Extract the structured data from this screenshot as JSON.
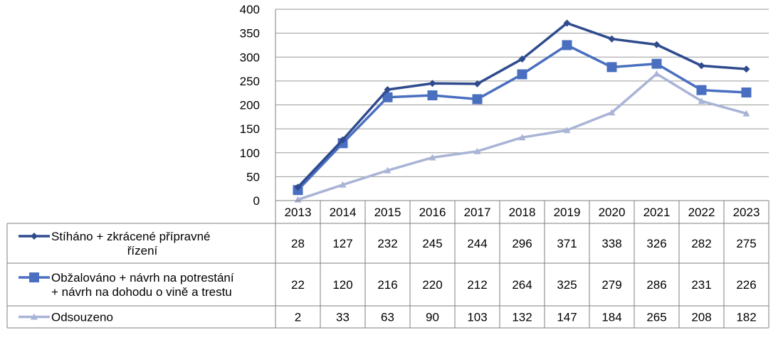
{
  "chart_data": {
    "type": "line",
    "title": "",
    "xlabel": "",
    "ylabel": "",
    "ylim": [
      0,
      400
    ],
    "yticks": [
      0,
      50,
      100,
      150,
      200,
      250,
      300,
      350,
      400
    ],
    "grid": true,
    "legend": "data table below chart",
    "categories": [
      "2013",
      "2014",
      "2015",
      "2016",
      "2017",
      "2018",
      "2019",
      "2020",
      "2021",
      "2022",
      "2023"
    ],
    "series": [
      {
        "name": "Stíháno + zkrácené přípravné řízení",
        "name_lines": [
          "Stíháno + zkrácené přípravné",
          "řízení"
        ],
        "marker": "diamond",
        "color": "#2f4b8e",
        "values": [
          28,
          127,
          232,
          245,
          244,
          296,
          371,
          338,
          326,
          282,
          275
        ]
      },
      {
        "name": "Obžalováno + návrh na potrestání + návrh na dohodu o vině a trestu",
        "name_lines": [
          "Obžalováno + návrh na potrestání",
          "+ návrh na dohodu o vině a trestu"
        ],
        "marker": "square",
        "color": "#4a6fc0",
        "values": [
          22,
          120,
          216,
          220,
          212,
          264,
          325,
          279,
          286,
          231,
          226
        ]
      },
      {
        "name": "Odsouzeno",
        "name_lines": [
          "Odsouzeno"
        ],
        "marker": "triangle",
        "color": "#a9b4d6",
        "values": [
          2,
          33,
          63,
          90,
          103,
          132,
          147,
          184,
          265,
          208,
          182
        ]
      }
    ]
  }
}
